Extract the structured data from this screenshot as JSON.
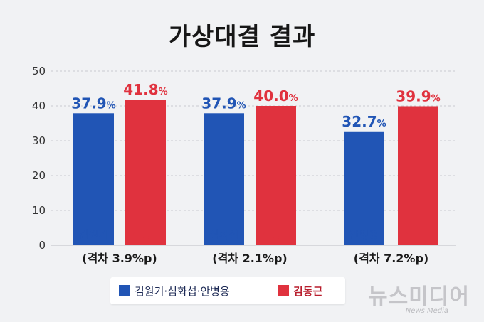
{
  "chart_data": {
    "type": "bar",
    "title": "가상대결 결과",
    "ylim": [
      0,
      50
    ],
    "yticks": [
      0,
      10,
      20,
      30,
      40,
      50
    ],
    "grid": true,
    "groups": [
      {
        "bars": [
          {
            "label": "김원기",
            "value": 37.9,
            "value_label": "37.9",
            "unit": "%",
            "color": "#2155b5"
          },
          {
            "label": "김동근",
            "value": 41.8,
            "value_label": "41.8",
            "unit": "%",
            "color": "#e0323e"
          }
        ],
        "gap_label": "(격차 3.9%p)"
      },
      {
        "bars": [
          {
            "label": "심화섭",
            "value": 37.9,
            "value_label": "37.9",
            "unit": "%",
            "color": "#2155b5"
          },
          {
            "label": "김동근",
            "value": 40.0,
            "value_label": "40.0",
            "unit": "%",
            "color": "#e0323e"
          }
        ],
        "gap_label": "(격차 2.1%p)"
      },
      {
        "bars": [
          {
            "label": "안병용",
            "value": 32.7,
            "value_label": "32.7",
            "unit": "%",
            "color": "#2155b5"
          },
          {
            "label": "김동근",
            "value": 39.9,
            "value_label": "39.9",
            "unit": "%",
            "color": "#e0323e"
          }
        ],
        "gap_label": "(격차 7.2%p)"
      }
    ],
    "legend": [
      {
        "name": "김원기·심화섭·안병용",
        "color": "#2155b5"
      },
      {
        "name": "김동근",
        "color": "#e0323e"
      }
    ],
    "legend_position": "bottom"
  },
  "watermark": {
    "main": "뉴스미디어",
    "sub": "News Media"
  }
}
